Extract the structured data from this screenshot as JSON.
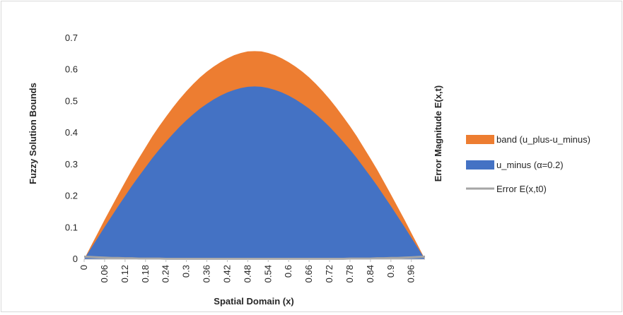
{
  "chart_data": {
    "type": "area",
    "xlabel": "Spatial Domain (x)",
    "ylabel": "Fuzzy Solution Bounds",
    "y2label": "Error Magnitude E(x,t)",
    "ylim": [
      0,
      0.7
    ],
    "yticks": [
      0,
      0.1,
      0.2,
      0.3,
      0.4,
      0.5,
      0.6,
      0.7
    ],
    "ytick_labels": [
      "0",
      "0.1",
      "0.2",
      "0.3",
      "0.4",
      "0.5",
      "0.6",
      "0.7"
    ],
    "grid": false,
    "legend_position": "right",
    "x": [
      0,
      0.02,
      0.04,
      0.06,
      0.08,
      0.1,
      0.12,
      0.14,
      0.16,
      0.18,
      0.2,
      0.22,
      0.24,
      0.26,
      0.28,
      0.3,
      0.32,
      0.34,
      0.36,
      0.38,
      0.4,
      0.42,
      0.44,
      0.46,
      0.48,
      0.5,
      0.52,
      0.54,
      0.56,
      0.58,
      0.6,
      0.62,
      0.64,
      0.66,
      0.68,
      0.7,
      0.72,
      0.74,
      0.76,
      0.78,
      0.8,
      0.82,
      0.84,
      0.86,
      0.88,
      0.9,
      0.92,
      0.94,
      0.96,
      0.98,
      1.0
    ],
    "x_tick_labels": [
      "0",
      "0.06",
      "0.12",
      "0.18",
      "0.24",
      "0.3",
      "0.36",
      "0.42",
      "0.48",
      "0.54",
      "0.6",
      "0.66",
      "0.72",
      "0.78",
      "0.84",
      "0.9",
      "0.96"
    ],
    "series": [
      {
        "name": "band (u_plus-u_minus)",
        "color": "#ed7d31",
        "kind": "stacked-area",
        "values": [
          0,
          0.008,
          0.015,
          0.023,
          0.03,
          0.037,
          0.044,
          0.051,
          0.057,
          0.063,
          0.069,
          0.074,
          0.079,
          0.084,
          0.088,
          0.092,
          0.096,
          0.099,
          0.102,
          0.104,
          0.106,
          0.108,
          0.11,
          0.111,
          0.112,
          0.112,
          0.112,
          0.111,
          0.11,
          0.108,
          0.106,
          0.104,
          0.102,
          0.099,
          0.096,
          0.092,
          0.088,
          0.084,
          0.079,
          0.074,
          0.069,
          0.063,
          0.057,
          0.051,
          0.044,
          0.037,
          0.03,
          0.023,
          0.015,
          0.008,
          0
        ]
      },
      {
        "name": "u_minus (α=0.2)",
        "color": "#4472c4",
        "kind": "area",
        "values": [
          0,
          0.034,
          0.068,
          0.102,
          0.135,
          0.168,
          0.2,
          0.232,
          0.262,
          0.291,
          0.32,
          0.347,
          0.372,
          0.396,
          0.419,
          0.44,
          0.459,
          0.477,
          0.492,
          0.506,
          0.518,
          0.528,
          0.536,
          0.542,
          0.546,
          0.547,
          0.546,
          0.542,
          0.536,
          0.528,
          0.518,
          0.506,
          0.492,
          0.477,
          0.459,
          0.44,
          0.419,
          0.396,
          0.372,
          0.347,
          0.32,
          0.291,
          0.262,
          0.232,
          0.2,
          0.168,
          0.135,
          0.102,
          0.068,
          0.034,
          0
        ]
      },
      {
        "name": "Error E(x,t0)",
        "color": "#a5a5a5",
        "kind": "line",
        "values": [
          0.008,
          0.007,
          0.006,
          0.005,
          0.004,
          0.004,
          0.003,
          0.003,
          0.002,
          0.002,
          0.002,
          0.002,
          0.001,
          0.001,
          0.001,
          0.001,
          0.001,
          0.001,
          0.001,
          0.001,
          0.001,
          0.001,
          0.001,
          0.001,
          0.001,
          0.001,
          0.001,
          0.001,
          0.001,
          0.001,
          0.001,
          0.001,
          0.001,
          0.001,
          0.001,
          0.001,
          0.001,
          0.001,
          0.001,
          0.002,
          0.002,
          0.002,
          0.002,
          0.003,
          0.003,
          0.004,
          0.004,
          0.005,
          0.006,
          0.007,
          0.008
        ]
      }
    ]
  }
}
